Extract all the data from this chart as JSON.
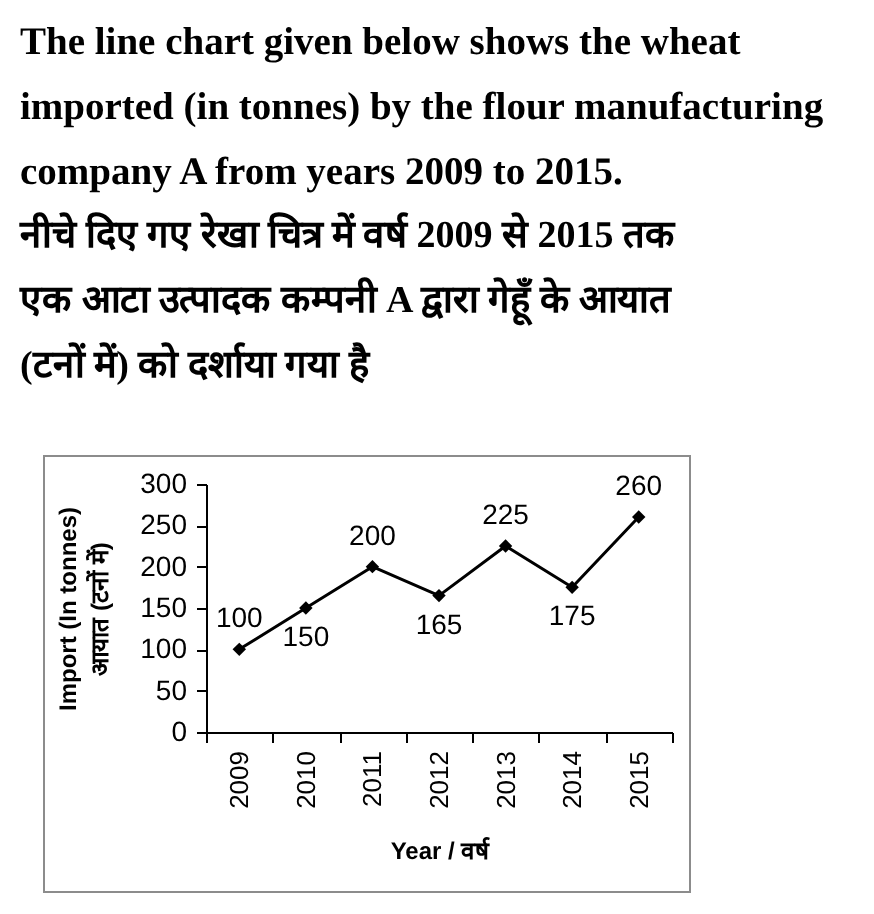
{
  "chart_data": {
    "type": "line",
    "title": "The line chart given below shows the wheat imported (in tonnes) by the flour manufacturing company A from years 2009 to 2015.",
    "subtitle": "नीचे दिए गए रेखा चित्र में वर्ष 2009 से 2015 तक एक आटा उत्पादक कम्पनी A द्वारा गेहूँ के आयात (टनों में) को दर्शाया गया है",
    "xlabel": "Year / वर्ष",
    "ylabel": "Import (In tonnes)\nआयात (टनों में)",
    "categories": [
      "2009",
      "2010",
      "2011",
      "2012",
      "2013",
      "2014",
      "2015"
    ],
    "series": [
      {
        "color": "#000000",
        "values": [
          100,
          150,
          200,
          165,
          225,
          175,
          260
        ]
      }
    ],
    "ylim": [
      0,
      300
    ],
    "yticks": [
      0,
      50,
      100,
      150,
      200,
      250,
      300
    ],
    "grid": false,
    "marker": "diamond",
    "line_style": "solid",
    "data_labels": true
  }
}
